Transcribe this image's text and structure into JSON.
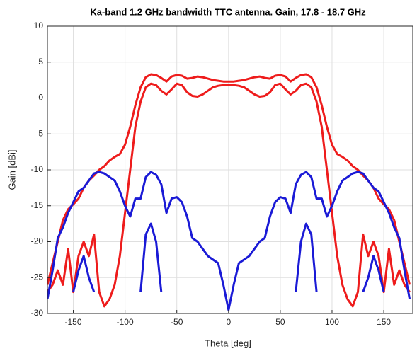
{
  "chart_data": {
    "type": "line",
    "title": "Ka-band 1.2 GHz bandwidth TTC antenna. Gain,  17.8 - 18.7 GHz",
    "xlabel": "Theta [deg]",
    "ylabel": "Gain [dBi]",
    "xlim": [
      -175,
      178
    ],
    "ylim": [
      -30,
      10
    ],
    "xticks": [
      -150,
      -100,
      -50,
      0,
      50,
      100,
      150
    ],
    "yticks": [
      -30,
      -25,
      -20,
      -15,
      -10,
      -5,
      0,
      5,
      10
    ],
    "grid": true,
    "x": [
      -175,
      -170,
      -165,
      -160,
      -155,
      -150,
      -145,
      -140,
      -135,
      -130,
      -125,
      -120,
      -115,
      -110,
      -105,
      -100,
      -95,
      -90,
      -85,
      -80,
      -75,
      -70,
      -65,
      -60,
      -55,
      -50,
      -45,
      -40,
      -35,
      -30,
      -25,
      -20,
      -15,
      -10,
      -5,
      0,
      5,
      10,
      15,
      20,
      25,
      30,
      35,
      40,
      45,
      50,
      55,
      60,
      65,
      70,
      75,
      80,
      85,
      90,
      95,
      100,
      105,
      110,
      115,
      120,
      125,
      130,
      135,
      140,
      145,
      150,
      155,
      160,
      165,
      170,
      175
    ],
    "series": [
      {
        "color": "#ee1c1c",
        "values": [
          -26,
          -23,
          -20,
          -17,
          -15.5,
          -14.8,
          -14,
          -12.5,
          -11.5,
          -10.8,
          -10,
          -9.5,
          -8.7,
          -8.2,
          -7.8,
          -6.5,
          -4,
          -1,
          1.5,
          2.9,
          3.3,
          3.2,
          2.8,
          2.3,
          3.0,
          3.2,
          3.1,
          2.7,
          2.8,
          3.0,
          2.9,
          2.7,
          2.5,
          2.4,
          2.3,
          2.3,
          2.3,
          2.4,
          2.5,
          2.7,
          2.9,
          3.0,
          2.8,
          2.7,
          3.1,
          3.2,
          3.0,
          2.3,
          2.8,
          3.2,
          3.3,
          2.9,
          1.5,
          -1,
          -4,
          -6.5,
          -7.8,
          -8.2,
          -8.7,
          -9.5,
          -10,
          -10.8,
          -11.5,
          -12.5,
          -14,
          -14.8,
          -15.5,
          -17,
          -20,
          -23,
          -26
        ]
      },
      {
        "color": "#ee1c1c",
        "values": [
          -27,
          -26,
          -24,
          -26,
          -21,
          -27,
          -22,
          -20,
          -22,
          -19,
          -27,
          -29,
          -28,
          -26,
          -22,
          -16,
          -10,
          -4,
          -0.5,
          1.5,
          2.0,
          1.8,
          1.0,
          0.5,
          1.2,
          2.0,
          1.8,
          0.8,
          0.3,
          0.2,
          0.5,
          1.0,
          1.5,
          1.7,
          1.8,
          1.8,
          1.8,
          1.7,
          1.5,
          1.0,
          0.5,
          0.2,
          0.3,
          0.8,
          1.8,
          2.0,
          1.2,
          0.5,
          1.0,
          1.8,
          2.0,
          1.5,
          -0.5,
          -4,
          -10,
          -16,
          -22,
          -26,
          -28,
          -29,
          -27,
          -19,
          -22,
          -20,
          -22,
          -27,
          -21,
          -26,
          -24,
          -26,
          -27
        ]
      },
      {
        "color": "#1a1ad6",
        "values": [
          -28,
          -24,
          -19.5,
          -18,
          -16,
          -14.5,
          -13,
          -12.5,
          -11.5,
          -10.5,
          -10.3,
          -10.5,
          -11,
          -11.5,
          -13,
          -15,
          -16.5,
          -14,
          -14,
          -11,
          -10.3,
          -10.7,
          -12,
          -16,
          -14,
          -13.8,
          -14.5,
          -16.5,
          -19.5,
          -20,
          -21,
          -22,
          -22.5,
          -23,
          -26,
          -29.5,
          -26,
          -23,
          -22.5,
          -22,
          -21,
          -20,
          -19.5,
          -16.5,
          -14.5,
          -13.8,
          -14,
          -16,
          -12,
          -10.7,
          -10.3,
          -11,
          -14,
          -14,
          -16.5,
          -15,
          -13,
          -11.5,
          -11,
          -10.5,
          -10.3,
          -10.5,
          -11.5,
          -12.5,
          -13,
          -14.5,
          -16,
          -18,
          -19.5,
          -24,
          -28
        ]
      },
      {
        "color": "#1a1ad6",
        "values": [
          null,
          null,
          null,
          null,
          null,
          -27,
          -24,
          -22,
          -25,
          -27,
          null,
          null,
          null,
          null,
          null,
          null,
          null,
          null,
          -27,
          -19,
          -17.5,
          -20,
          -27,
          null,
          null,
          null,
          null,
          null,
          null,
          null,
          null,
          null,
          null,
          null,
          null,
          null,
          null,
          null,
          null,
          null,
          null,
          null,
          null,
          null,
          null,
          null,
          null,
          null,
          -27,
          -20,
          -17.5,
          -19,
          -27,
          null,
          null,
          null,
          null,
          null,
          null,
          null,
          null,
          -27,
          -25,
          -22,
          -24,
          -27,
          null,
          null,
          null,
          null,
          null
        ]
      }
    ]
  }
}
